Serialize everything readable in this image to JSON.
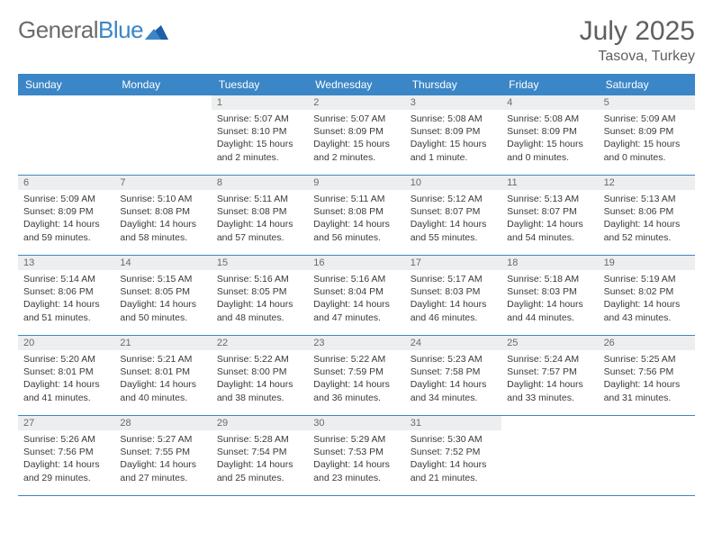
{
  "brand": {
    "word1": "General",
    "word2": "Blue"
  },
  "title": "July 2025",
  "location": "Tasova, Turkey",
  "colors": {
    "header_bg": "#3b86c6",
    "header_text": "#ffffff",
    "daynum_bg": "#eceeef",
    "daynum_text": "#6a6a6a",
    "body_text": "#3a3a3a",
    "week_border": "#3b86c6",
    "title_text": "#5f5f5f"
  },
  "fonts": {
    "title_size_pt": 30,
    "location_size_pt": 16,
    "header_cell_pt": 12,
    "daynum_pt": 11,
    "body_pt": 10.5
  },
  "day_headers": [
    "Sunday",
    "Monday",
    "Tuesday",
    "Wednesday",
    "Thursday",
    "Friday",
    "Saturday"
  ],
  "weeks": [
    [
      {
        "day": "",
        "lines": []
      },
      {
        "day": "",
        "lines": []
      },
      {
        "day": "1",
        "lines": [
          "Sunrise: 5:07 AM",
          "Sunset: 8:10 PM",
          "Daylight: 15 hours",
          "and 2 minutes."
        ]
      },
      {
        "day": "2",
        "lines": [
          "Sunrise: 5:07 AM",
          "Sunset: 8:09 PM",
          "Daylight: 15 hours",
          "and 2 minutes."
        ]
      },
      {
        "day": "3",
        "lines": [
          "Sunrise: 5:08 AM",
          "Sunset: 8:09 PM",
          "Daylight: 15 hours",
          "and 1 minute."
        ]
      },
      {
        "day": "4",
        "lines": [
          "Sunrise: 5:08 AM",
          "Sunset: 8:09 PM",
          "Daylight: 15 hours",
          "and 0 minutes."
        ]
      },
      {
        "day": "5",
        "lines": [
          "Sunrise: 5:09 AM",
          "Sunset: 8:09 PM",
          "Daylight: 15 hours",
          "and 0 minutes."
        ]
      }
    ],
    [
      {
        "day": "6",
        "lines": [
          "Sunrise: 5:09 AM",
          "Sunset: 8:09 PM",
          "Daylight: 14 hours",
          "and 59 minutes."
        ]
      },
      {
        "day": "7",
        "lines": [
          "Sunrise: 5:10 AM",
          "Sunset: 8:08 PM",
          "Daylight: 14 hours",
          "and 58 minutes."
        ]
      },
      {
        "day": "8",
        "lines": [
          "Sunrise: 5:11 AM",
          "Sunset: 8:08 PM",
          "Daylight: 14 hours",
          "and 57 minutes."
        ]
      },
      {
        "day": "9",
        "lines": [
          "Sunrise: 5:11 AM",
          "Sunset: 8:08 PM",
          "Daylight: 14 hours",
          "and 56 minutes."
        ]
      },
      {
        "day": "10",
        "lines": [
          "Sunrise: 5:12 AM",
          "Sunset: 8:07 PM",
          "Daylight: 14 hours",
          "and 55 minutes."
        ]
      },
      {
        "day": "11",
        "lines": [
          "Sunrise: 5:13 AM",
          "Sunset: 8:07 PM",
          "Daylight: 14 hours",
          "and 54 minutes."
        ]
      },
      {
        "day": "12",
        "lines": [
          "Sunrise: 5:13 AM",
          "Sunset: 8:06 PM",
          "Daylight: 14 hours",
          "and 52 minutes."
        ]
      }
    ],
    [
      {
        "day": "13",
        "lines": [
          "Sunrise: 5:14 AM",
          "Sunset: 8:06 PM",
          "Daylight: 14 hours",
          "and 51 minutes."
        ]
      },
      {
        "day": "14",
        "lines": [
          "Sunrise: 5:15 AM",
          "Sunset: 8:05 PM",
          "Daylight: 14 hours",
          "and 50 minutes."
        ]
      },
      {
        "day": "15",
        "lines": [
          "Sunrise: 5:16 AM",
          "Sunset: 8:05 PM",
          "Daylight: 14 hours",
          "and 48 minutes."
        ]
      },
      {
        "day": "16",
        "lines": [
          "Sunrise: 5:16 AM",
          "Sunset: 8:04 PM",
          "Daylight: 14 hours",
          "and 47 minutes."
        ]
      },
      {
        "day": "17",
        "lines": [
          "Sunrise: 5:17 AM",
          "Sunset: 8:03 PM",
          "Daylight: 14 hours",
          "and 46 minutes."
        ]
      },
      {
        "day": "18",
        "lines": [
          "Sunrise: 5:18 AM",
          "Sunset: 8:03 PM",
          "Daylight: 14 hours",
          "and 44 minutes."
        ]
      },
      {
        "day": "19",
        "lines": [
          "Sunrise: 5:19 AM",
          "Sunset: 8:02 PM",
          "Daylight: 14 hours",
          "and 43 minutes."
        ]
      }
    ],
    [
      {
        "day": "20",
        "lines": [
          "Sunrise: 5:20 AM",
          "Sunset: 8:01 PM",
          "Daylight: 14 hours",
          "and 41 minutes."
        ]
      },
      {
        "day": "21",
        "lines": [
          "Sunrise: 5:21 AM",
          "Sunset: 8:01 PM",
          "Daylight: 14 hours",
          "and 40 minutes."
        ]
      },
      {
        "day": "22",
        "lines": [
          "Sunrise: 5:22 AM",
          "Sunset: 8:00 PM",
          "Daylight: 14 hours",
          "and 38 minutes."
        ]
      },
      {
        "day": "23",
        "lines": [
          "Sunrise: 5:22 AM",
          "Sunset: 7:59 PM",
          "Daylight: 14 hours",
          "and 36 minutes."
        ]
      },
      {
        "day": "24",
        "lines": [
          "Sunrise: 5:23 AM",
          "Sunset: 7:58 PM",
          "Daylight: 14 hours",
          "and 34 minutes."
        ]
      },
      {
        "day": "25",
        "lines": [
          "Sunrise: 5:24 AM",
          "Sunset: 7:57 PM",
          "Daylight: 14 hours",
          "and 33 minutes."
        ]
      },
      {
        "day": "26",
        "lines": [
          "Sunrise: 5:25 AM",
          "Sunset: 7:56 PM",
          "Daylight: 14 hours",
          "and 31 minutes."
        ]
      }
    ],
    [
      {
        "day": "27",
        "lines": [
          "Sunrise: 5:26 AM",
          "Sunset: 7:56 PM",
          "Daylight: 14 hours",
          "and 29 minutes."
        ]
      },
      {
        "day": "28",
        "lines": [
          "Sunrise: 5:27 AM",
          "Sunset: 7:55 PM",
          "Daylight: 14 hours",
          "and 27 minutes."
        ]
      },
      {
        "day": "29",
        "lines": [
          "Sunrise: 5:28 AM",
          "Sunset: 7:54 PM",
          "Daylight: 14 hours",
          "and 25 minutes."
        ]
      },
      {
        "day": "30",
        "lines": [
          "Sunrise: 5:29 AM",
          "Sunset: 7:53 PM",
          "Daylight: 14 hours",
          "and 23 minutes."
        ]
      },
      {
        "day": "31",
        "lines": [
          "Sunrise: 5:30 AM",
          "Sunset: 7:52 PM",
          "Daylight: 14 hours",
          "and 21 minutes."
        ]
      },
      {
        "day": "",
        "lines": []
      },
      {
        "day": "",
        "lines": []
      }
    ]
  ]
}
